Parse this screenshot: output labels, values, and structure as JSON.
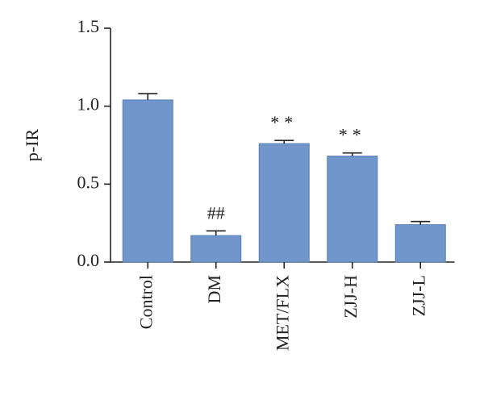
{
  "chart_data": {
    "type": "bar",
    "y_label": "p-IR",
    "categories": [
      "Control",
      "DM",
      "MET/FLX",
      "ZJJ-H",
      "ZJJ-L"
    ],
    "values": [
      1.04,
      0.17,
      0.76,
      0.68,
      0.24
    ],
    "errors": [
      0.04,
      0.03,
      0.02,
      0.02,
      0.02
    ],
    "color": "#7096cb",
    "annotations": [
      {
        "category": "DM",
        "text": "##"
      },
      {
        "category": "MET/FLX",
        "text": "**"
      },
      {
        "category": "ZJJ-H",
        "text": "**"
      }
    ],
    "ylim": [
      0,
      1.5
    ],
    "yticks": [
      {
        "value": 0,
        "label": "0.0"
      },
      0.5,
      {
        "value": 1,
        "label": "1.0"
      },
      {
        "value": 1.5,
        "label": "1.5"
      }
    ],
    "grid": false
  }
}
